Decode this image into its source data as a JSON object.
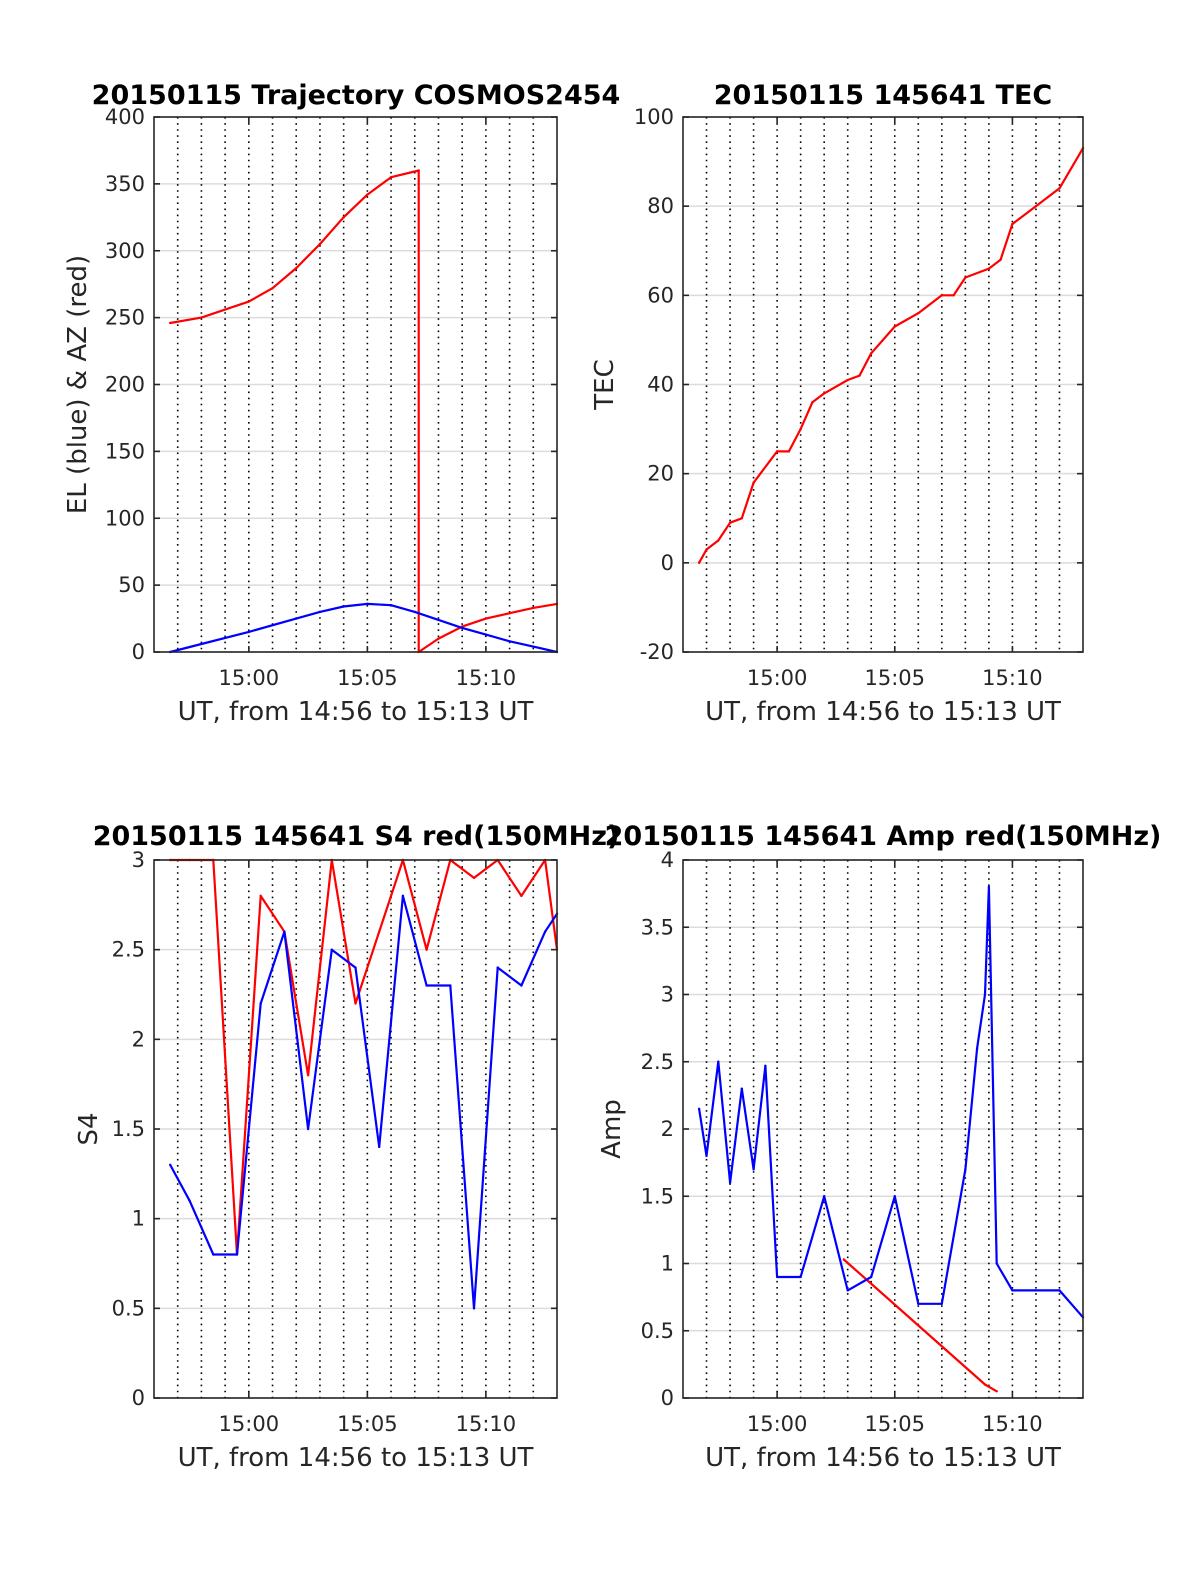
{
  "colors": {
    "red": "#ff0000",
    "blue": "#0000ff",
    "axis": "#262626",
    "grid": "#dcdcdc",
    "dotted": "#000000"
  },
  "chart_data": [
    {
      "type": "line",
      "title": "20150115 Trajectory COSMOS2454",
      "xlabel": "UT, from 14:56 to 15:13 UT",
      "ylabel": "EL (blue) & AZ (red)",
      "xlim": [
        "14:56",
        "15:13"
      ],
      "ylim": [
        0,
        400
      ],
      "xticks": [
        "15:00",
        "15:05",
        "15:10"
      ],
      "yticks": [
        "0",
        "50",
        "100",
        "150",
        "200",
        "250",
        "300",
        "350",
        "400"
      ],
      "grid": true,
      "series": [
        {
          "color": "red",
          "x": [
            "14:56:41",
            "14:58",
            "15:00",
            "15:01",
            "15:02",
            "15:03",
            "15:04",
            "15:05",
            "15:06",
            "15:07:10",
            "15:07:10",
            "15:08",
            "15:09",
            "15:10",
            "15:11",
            "15:12",
            "15:13"
          ],
          "values": [
            246,
            250,
            262,
            272,
            287,
            305,
            325,
            342,
            355,
            360,
            0,
            10,
            19,
            25,
            29,
            33,
            36
          ]
        },
        {
          "color": "blue",
          "x": [
            "14:56:41",
            "14:58",
            "15:00",
            "15:02",
            "15:03",
            "15:04",
            "15:05",
            "15:06",
            "15:07",
            "15:08",
            "15:09",
            "15:10",
            "15:11",
            "15:12",
            "15:13"
          ],
          "values": [
            0,
            6,
            15,
            25,
            30,
            34,
            36,
            35,
            30,
            24,
            18,
            13,
            8,
            4,
            0
          ]
        }
      ]
    },
    {
      "type": "line",
      "title": "20150115 145641 TEC",
      "xlabel": "UT, from 14:56 to 15:13 UT",
      "ylabel": "TEC",
      "xlim": [
        "14:56",
        "15:13"
      ],
      "ylim": [
        -20,
        100
      ],
      "xticks": [
        "15:00",
        "15:05",
        "15:10"
      ],
      "yticks": [
        "-20",
        "0",
        "20",
        "40",
        "60",
        "80",
        "100"
      ],
      "grid": true,
      "series": [
        {
          "color": "red",
          "x": [
            "14:56:41",
            "14:57",
            "14:57:30",
            "14:58",
            "14:58:30",
            "14:59",
            "15:00",
            "15:00:30",
            "15:01",
            "15:01:30",
            "15:02",
            "15:03",
            "15:03:30",
            "15:04",
            "15:05",
            "15:06",
            "15:07",
            "15:07:30",
            "15:08",
            "15:09",
            "15:09:30",
            "15:10",
            "15:11",
            "15:12",
            "15:13"
          ],
          "values": [
            0,
            3,
            5,
            9,
            10,
            18,
            25,
            25,
            30,
            36,
            38,
            41,
            42,
            47,
            53,
            56,
            60,
            60,
            64,
            66,
            68,
            76,
            80,
            84,
            93
          ]
        }
      ]
    },
    {
      "type": "line",
      "title": "20150115 145641 S4 red(150MHz)",
      "xlabel": "UT, from 14:56 to 15:13 UT",
      "ylabel": "S4",
      "xlim": [
        "14:56",
        "15:13"
      ],
      "ylim": [
        0,
        3
      ],
      "xticks": [
        "15:00",
        "15:05",
        "15:10"
      ],
      "yticks": [
        "0",
        "0.5",
        "1",
        "1.5",
        "2",
        "2.5",
        "3"
      ],
      "grid": true,
      "series": [
        {
          "color": "red",
          "x": [
            "14:56:41",
            "14:57:30",
            "14:58:30",
            "14:59:30",
            "15:00:30",
            "15:01:30",
            "15:02:30",
            "15:03:30",
            "15:04:30",
            "15:05:30",
            "15:06:30",
            "15:07:30",
            "15:08:30",
            "15:09:30",
            "15:10:30",
            "15:11:30",
            "15:12:30",
            "15:13"
          ],
          "values": [
            3,
            3,
            3,
            0.8,
            2.8,
            2.6,
            1.8,
            3,
            2.2,
            2.6,
            3,
            2.5,
            3,
            2.9,
            3,
            2.8,
            3,
            2.5
          ]
        },
        {
          "color": "blue",
          "x": [
            "14:56:41",
            "14:57:30",
            "14:58:30",
            "14:59:30",
            "15:00:30",
            "15:01:30",
            "15:02:30",
            "15:03:30",
            "15:04:30",
            "15:05:30",
            "15:06:30",
            "15:07:30",
            "15:08:30",
            "15:09:30",
            "15:10:30",
            "15:11:30",
            "15:12:30",
            "15:13"
          ],
          "values": [
            1.3,
            1.1,
            0.8,
            0.8,
            2.2,
            2.6,
            1.5,
            2.5,
            2.4,
            1.4,
            2.8,
            2.3,
            2.3,
            0.5,
            2.4,
            2.3,
            2.6,
            2.7
          ]
        }
      ]
    },
    {
      "type": "line",
      "title": "20150115 145641 Amp red(150MHz)",
      "xlabel": "UT, from 14:56 to 15:13 UT",
      "ylabel": "Amp",
      "xlim": [
        "14:56",
        "15:13"
      ],
      "ylim": [
        0,
        4
      ],
      "xticks": [
        "15:00",
        "15:05",
        "15:10"
      ],
      "yticks": [
        "0",
        "0.5",
        "1",
        "1.5",
        "2",
        "2.5",
        "3",
        "3.5",
        "4"
      ],
      "grid": true,
      "series": [
        {
          "color": "red",
          "x": [
            "15:02:50",
            "15:08:50",
            "15:09:20"
          ],
          "values": [
            1.03,
            0.1,
            0.05
          ]
        },
        {
          "color": "blue",
          "x": [
            "14:56:41",
            "14:57:00",
            "14:57:30",
            "14:58:00",
            "14:58:30",
            "14:59:00",
            "14:59:30",
            "15:00:00",
            "15:01:00",
            "15:02:00",
            "15:03:00",
            "15:04:00",
            "15:05:00",
            "15:06:00",
            "15:07:00",
            "15:08:00",
            "15:08:30",
            "15:08:50",
            "15:09:00",
            "15:09:20",
            "15:10:00",
            "15:11:00",
            "15:12:00",
            "15:13"
          ],
          "values": [
            2.15,
            1.8,
            2.5,
            1.6,
            2.3,
            1.7,
            2.47,
            0.9,
            0.9,
            1.5,
            0.8,
            0.9,
            1.5,
            0.7,
            0.7,
            1.7,
            2.6,
            3.0,
            3.8,
            1.0,
            0.8,
            0.8,
            0.8,
            0.6
          ]
        }
      ]
    }
  ]
}
